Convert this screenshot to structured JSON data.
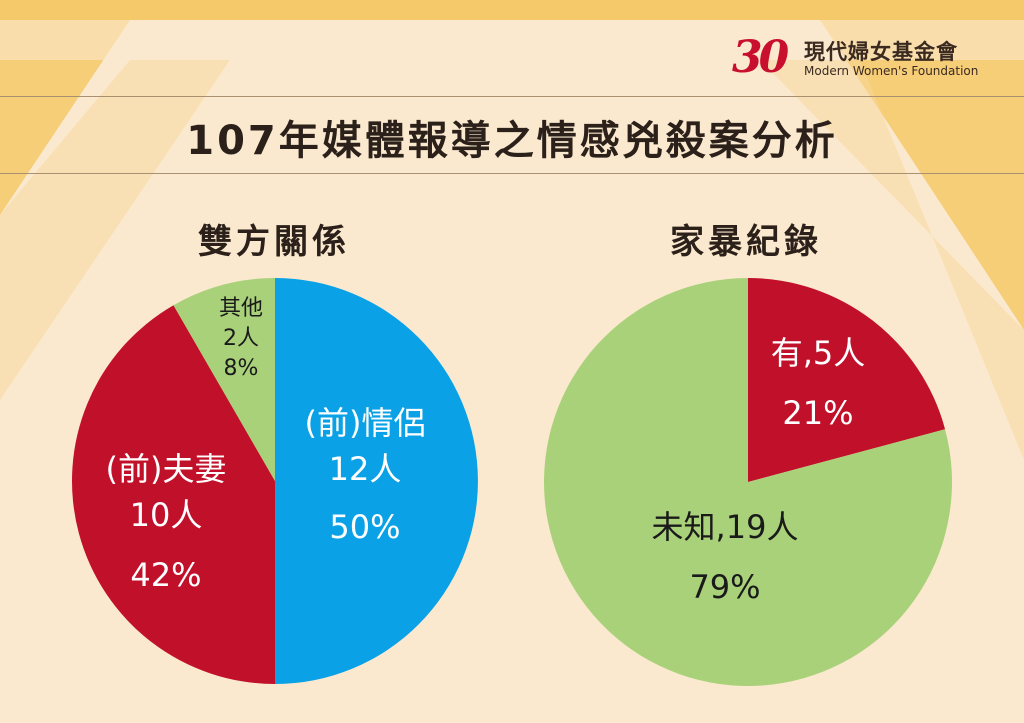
{
  "logo": {
    "mark": "30",
    "name_cn": "現代婦女基金會",
    "name_en": "Modern Women's Foundation"
  },
  "title": "107年媒體報導之情感兇殺案分析",
  "colors": {
    "blue": "#0aa1e6",
    "red": "#c1102a",
    "green": "#a9d17a",
    "text_dark": "#2b211a",
    "background": "#fbe9cf",
    "sunburst": "#f5c969"
  },
  "chart_data": [
    {
      "type": "pie",
      "title": "雙方關係",
      "slices": [
        {
          "label": "(前)情侶",
          "count_label": "12人",
          "pct_label": "50%",
          "value": 12,
          "color": "#0aa1e6",
          "text_color": "#ffffff"
        },
        {
          "label": "(前)夫妻",
          "count_label": "10人",
          "pct_label": "42%",
          "value": 10,
          "color": "#c1102a",
          "text_color": "#ffffff"
        },
        {
          "label": "其他",
          "count_label": "2人",
          "pct_label": "8%",
          "value": 2,
          "color": "#a9d17a",
          "text_color": "#1a1a1a"
        }
      ]
    },
    {
      "type": "pie",
      "title": "家暴紀錄",
      "slices": [
        {
          "label": "有,5人",
          "pct_label": "21%",
          "value": 5,
          "color": "#c1102a",
          "text_color": "#ffffff"
        },
        {
          "label": "未知,19人",
          "pct_label": "79%",
          "value": 19,
          "color": "#a9d17a",
          "text_color": "#1a1a1a"
        }
      ]
    }
  ]
}
